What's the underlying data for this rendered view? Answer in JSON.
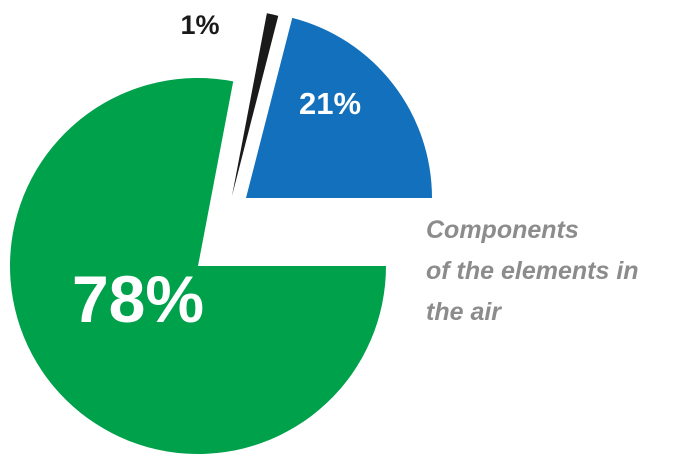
{
  "chart_data": {
    "type": "pie",
    "title": "",
    "caption_lines": [
      "Components",
      "of the elements in",
      "the air"
    ],
    "slices": [
      {
        "label": "78%",
        "value": 78,
        "color": "#00a14b",
        "label_color": "#ffffff"
      },
      {
        "label": "1%",
        "value": 1,
        "color": "#1a1a1a",
        "label_color": "#1a1a1a"
      },
      {
        "label": "21%",
        "value": 21,
        "color": "#1270bd",
        "label_color": "#ffffff"
      }
    ],
    "exploded": true,
    "legend": "none"
  }
}
